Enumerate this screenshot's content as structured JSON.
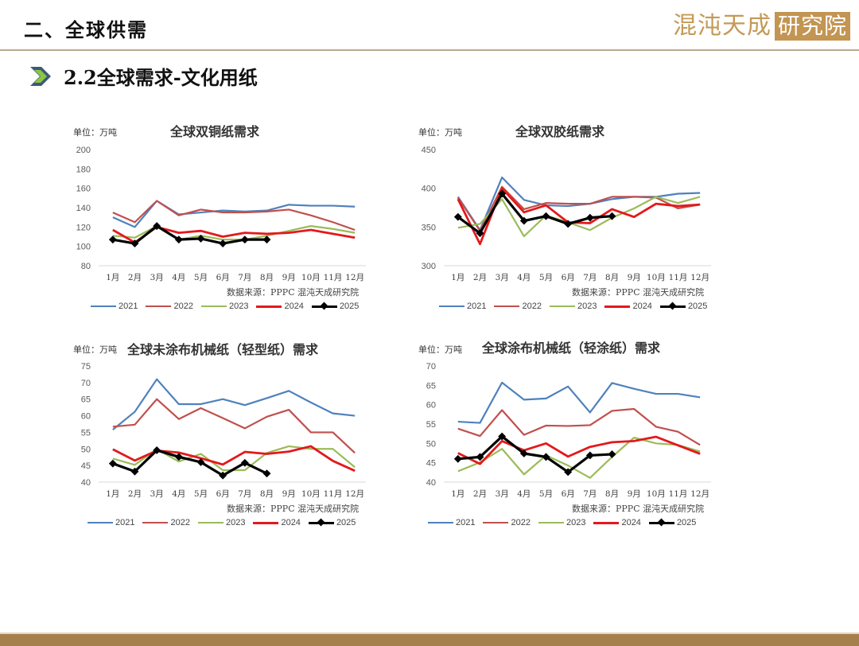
{
  "header": {
    "title": "二、全球供需",
    "logo_text": "混沌天成",
    "logo_box": "研究院"
  },
  "section": {
    "icon": "chevron-right-icon",
    "title": "2.2全球需求-文化用纸"
  },
  "colors": {
    "2021": "#4f81bd",
    "2022": "#c0504d",
    "2023": "#9bbb59",
    "2024": "#e3191c",
    "2025": "#000000",
    "brand": "#c39552",
    "footer": "#a5804d"
  },
  "legend": [
    "2021",
    "2022",
    "2023",
    "2024",
    "2025"
  ],
  "source_text": "数据来源：PPPC 混沌天成研究院",
  "unit_text": "单位：万吨",
  "chart_data": [
    {
      "type": "line",
      "title": "全球双铜纸需求",
      "unit": "单位：万吨",
      "categories": [
        "1月",
        "2月",
        "3月",
        "4月",
        "5月",
        "6月",
        "7月",
        "8月",
        "9月",
        "10月",
        "11月",
        "12月"
      ],
      "ylim": [
        80,
        200
      ],
      "yticks": [
        80,
        100,
        120,
        140,
        160,
        180,
        200
      ],
      "grid": false,
      "legend_position": "bottom",
      "series": [
        {
          "name": "2021",
          "values": [
            130,
            120,
            147,
            133,
            135,
            137,
            136,
            137,
            143,
            142,
            142,
            141
          ]
        },
        {
          "name": "2022",
          "values": [
            135,
            125,
            147,
            132,
            138,
            135,
            135,
            136,
            138,
            132,
            125,
            117
          ]
        },
        {
          "name": "2023",
          "values": [
            111,
            109,
            121,
            107,
            111,
            107,
            107,
            111,
            116,
            121,
            118,
            114
          ]
        },
        {
          "name": "2024",
          "values": [
            117,
            104,
            120,
            114,
            116,
            110,
            114,
            113,
            114,
            117,
            113,
            109
          ]
        },
        {
          "name": "2025",
          "values": [
            107,
            103,
            121,
            107,
            108,
            103,
            107,
            107,
            null,
            null,
            null,
            null
          ]
        }
      ]
    },
    {
      "type": "line",
      "title": "全球双胶纸需求",
      "unit": "单位：万吨",
      "categories": [
        "1月",
        "2月",
        "3月",
        "4月",
        "5月",
        "6月",
        "7月",
        "8月",
        "9月",
        "10月",
        "11月",
        "12月"
      ],
      "ylim": [
        300,
        450
      ],
      "yticks": [
        300,
        350,
        400,
        450
      ],
      "grid": false,
      "legend_position": "bottom",
      "series": [
        {
          "name": "2021",
          "values": [
            389,
            346,
            414,
            385,
            378,
            377,
            380,
            386,
            389,
            389,
            393,
            394
          ]
        },
        {
          "name": "2022",
          "values": [
            388,
            345,
            402,
            373,
            381,
            380,
            380,
            389,
            389,
            388,
            374,
            379
          ]
        },
        {
          "name": "2023",
          "values": [
            349,
            354,
            386,
            338,
            365,
            356,
            346,
            362,
            374,
            389,
            381,
            389
          ]
        },
        {
          "name": "2024",
          "values": [
            386,
            328,
            400,
            369,
            378,
            356,
            355,
            373,
            363,
            380,
            377,
            379
          ]
        },
        {
          "name": "2025",
          "values": [
            363,
            342,
            393,
            358,
            364,
            354,
            362,
            364,
            null,
            null,
            null,
            null
          ]
        }
      ]
    },
    {
      "type": "line",
      "title": "全球未涂布机械纸（轻型纸）需求",
      "unit": "单位：万吨",
      "categories": [
        "1月",
        "2月",
        "3月",
        "4月",
        "5月",
        "6月",
        "7月",
        "8月",
        "9月",
        "10月",
        "11月",
        "12月"
      ],
      "ylim": [
        40,
        75
      ],
      "yticks": [
        40,
        45,
        50,
        55,
        60,
        65,
        70,
        75
      ],
      "grid": false,
      "legend_position": "bottom",
      "series": [
        {
          "name": "2021",
          "values": [
            55.8,
            61.2,
            71.0,
            63.5,
            63.5,
            65.0,
            63.2,
            65.3,
            67.5,
            64.0,
            60.7,
            60.0
          ]
        },
        {
          "name": "2022",
          "values": [
            56.7,
            57.3,
            65.0,
            59.0,
            62.3,
            59.3,
            56.2,
            59.7,
            61.8,
            55.0,
            55.0,
            48.8
          ]
        },
        {
          "name": "2023",
          "values": [
            47.1,
            45.2,
            49.9,
            46.2,
            48.5,
            43.6,
            43.6,
            48.8,
            50.8,
            50.0,
            50.0,
            44.5
          ]
        },
        {
          "name": "2024",
          "values": [
            49.9,
            46.5,
            49.5,
            48.9,
            47.2,
            45.3,
            49.1,
            48.5,
            49.2,
            50.8,
            46.4,
            43.4
          ]
        },
        {
          "name": "2025",
          "values": [
            45.6,
            43.2,
            49.6,
            47.6,
            46.0,
            42.0,
            45.8,
            42.6,
            null,
            null,
            null,
            null
          ]
        }
      ]
    },
    {
      "type": "line",
      "title": "全球涂布机械纸（轻涂纸）需求",
      "unit": "单位：万吨",
      "categories": [
        "1月",
        "2月",
        "3月",
        "4月",
        "5月",
        "6月",
        "7月",
        "8月",
        "9月",
        "10月",
        "11月",
        "12月"
      ],
      "ylim": [
        40,
        70
      ],
      "yticks": [
        40,
        45,
        50,
        55,
        60,
        65,
        70
      ],
      "grid": false,
      "legend_position": "bottom",
      "series": [
        {
          "name": "2021",
          "values": [
            55.6,
            55.3,
            65.7,
            61.3,
            61.6,
            64.7,
            58.0,
            65.6,
            64.1,
            62.8,
            62.8,
            61.9
          ]
        },
        {
          "name": "2022",
          "values": [
            53.8,
            51.9,
            58.6,
            52.2,
            54.6,
            54.5,
            54.7,
            58.4,
            58.9,
            54.3,
            53.0,
            49.6
          ]
        },
        {
          "name": "2023",
          "values": [
            42.8,
            45.1,
            48.6,
            42.0,
            46.9,
            44.3,
            41.1,
            46.5,
            51.5,
            50.0,
            49.6,
            47.9
          ]
        },
        {
          "name": "2024",
          "values": [
            47.5,
            44.7,
            50.6,
            48.2,
            50.0,
            46.6,
            49.1,
            50.3,
            50.6,
            51.7,
            49.5,
            47.3
          ]
        },
        {
          "name": "2025",
          "values": [
            46.0,
            46.5,
            51.8,
            47.4,
            46.5,
            42.6,
            46.9,
            47.2,
            null,
            null,
            null,
            null
          ]
        }
      ]
    }
  ]
}
